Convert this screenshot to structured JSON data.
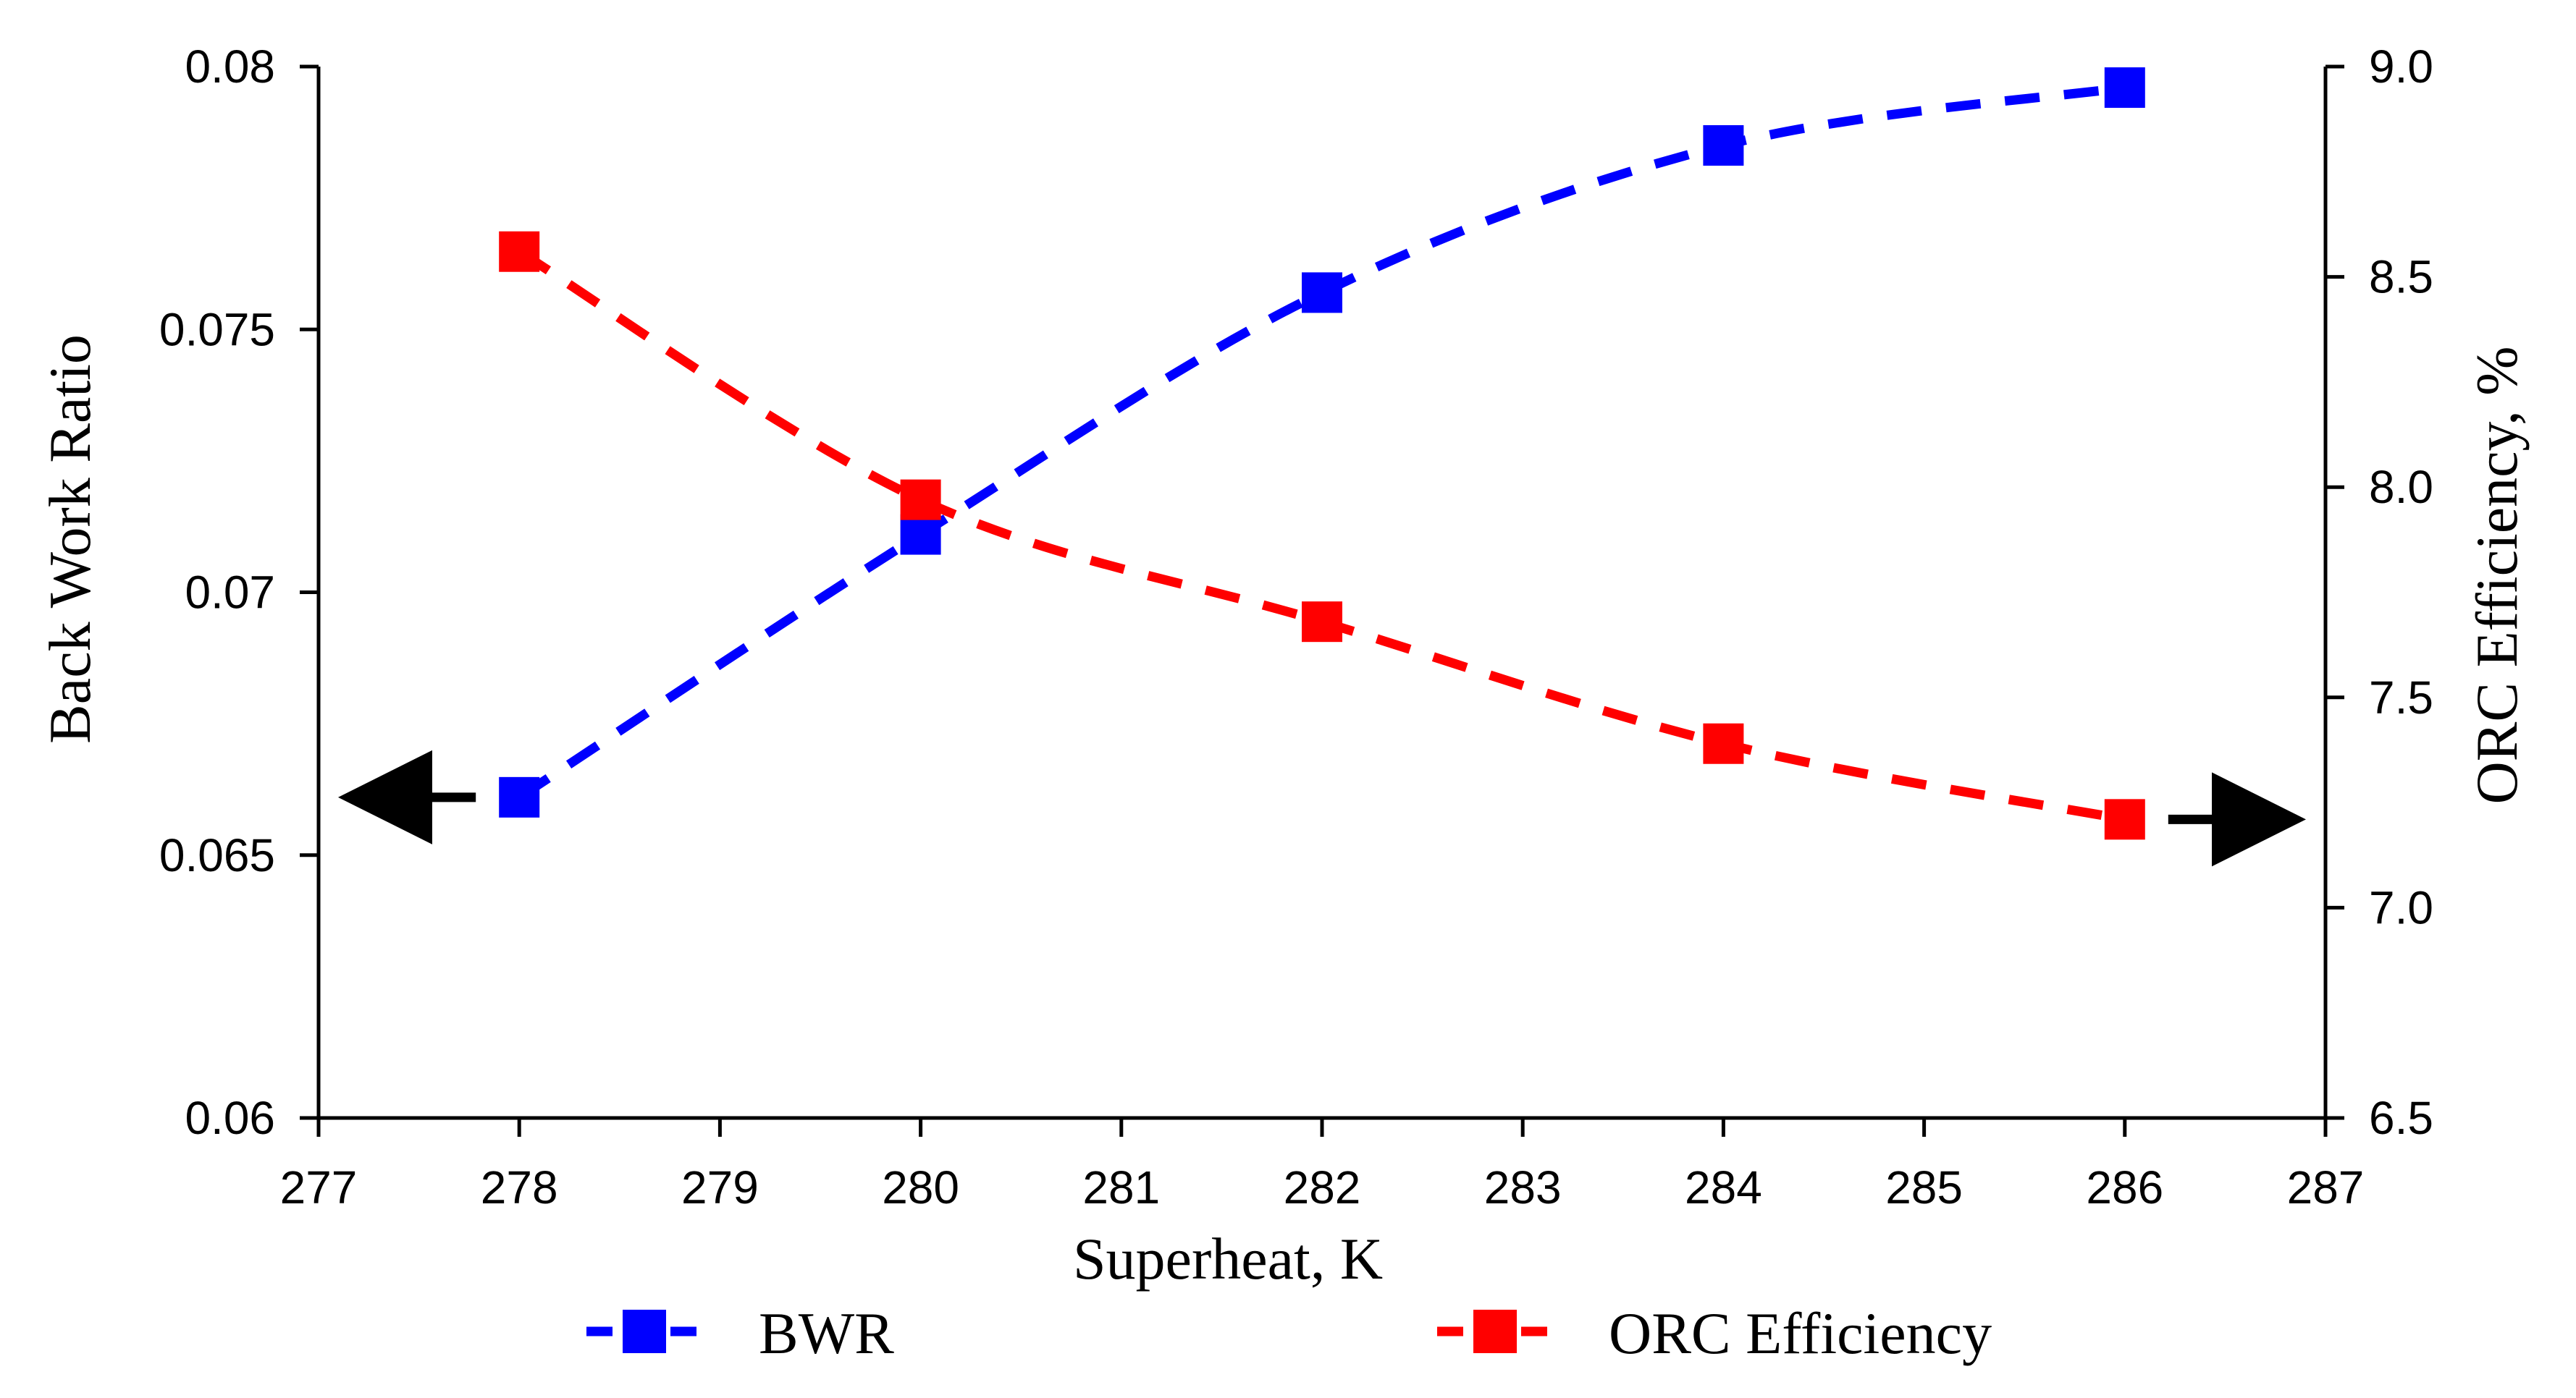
{
  "chart_data": {
    "type": "line",
    "title": "",
    "xlabel": "Superheat, K",
    "ylabel_left": "Back Work Ratio",
    "ylabel_right": "ORC Efficiency, %",
    "xlim": [
      277,
      287
    ],
    "ylim_left": [
      0.06,
      0.08
    ],
    "ylim_right": [
      6.5,
      9.0
    ],
    "x_ticks": [
      "277",
      "278",
      "279",
      "280",
      "281",
      "282",
      "283",
      "284",
      "285",
      "286",
      "287"
    ],
    "y_ticks_left": [
      "0.06",
      "0.065",
      "0.07",
      "0.075",
      "0.08"
    ],
    "y_ticks_right": [
      "6.5",
      "7.0",
      "7.5",
      "8.0",
      "8.5",
      "9.0"
    ],
    "grid": false,
    "legend_position": "bottom",
    "series": [
      {
        "name": "BWR",
        "axis": "left",
        "color": "#0000ff",
        "x": [
          278,
          280,
          282,
          284,
          286
        ],
        "values": [
          0.0661,
          0.0711,
          0.0757,
          0.0785,
          0.0796
        ]
      },
      {
        "name": "ORC Efficiency",
        "axis": "right",
        "color": "#ff0000",
        "x": [
          278,
          280,
          282,
          284,
          286
        ],
        "values": [
          8.56,
          7.97,
          7.68,
          7.39,
          7.21
        ]
      }
    ],
    "annotations": [
      {
        "type": "arrow",
        "direction": "left",
        "points_to": "left-axis",
        "series": "BWR"
      },
      {
        "type": "arrow",
        "direction": "right",
        "points_to": "right-axis",
        "series": "ORC Efficiency"
      }
    ]
  }
}
